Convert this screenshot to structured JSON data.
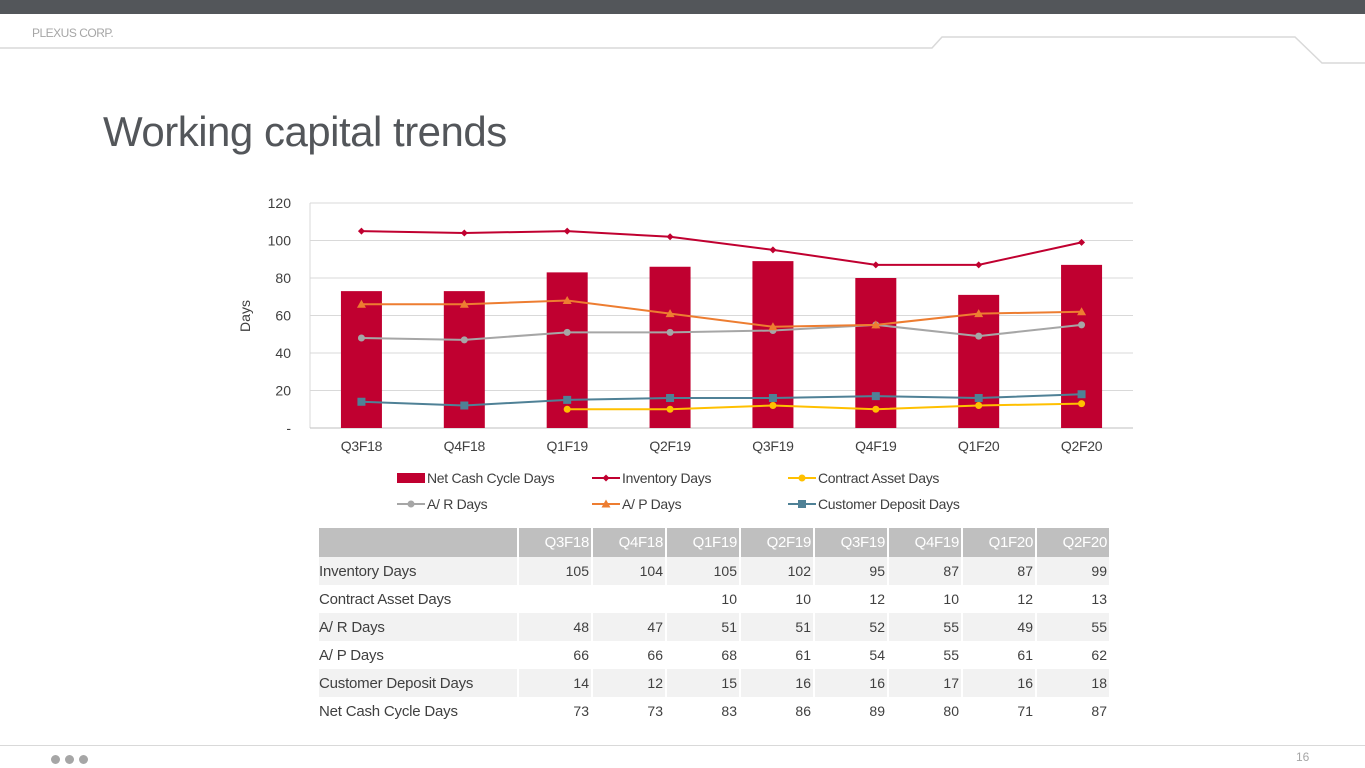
{
  "header": {
    "company": "PLEXUS CORP."
  },
  "slide": {
    "title": "Working capital trends",
    "page_number": "16"
  },
  "chart_data": {
    "type": "bar+line",
    "ylabel": "Days",
    "ylim": [
      0,
      120
    ],
    "yticks": [
      120,
      100,
      80,
      60,
      40,
      20,
      0
    ],
    "ytick_labels": [
      "120",
      "100",
      "80",
      "60",
      "40",
      "20",
      "-"
    ],
    "grid": true,
    "legend_position": "bottom",
    "categories": [
      "Q3F18",
      "Q4F18",
      "Q1F19",
      "Q2F19",
      "Q3F19",
      "Q4F19",
      "Q1F20",
      "Q2F20"
    ],
    "series": [
      {
        "name": "Net Cash Cycle Days",
        "type": "bar",
        "color": "#c00030",
        "values": [
          73,
          73,
          83,
          86,
          89,
          80,
          71,
          87
        ]
      },
      {
        "name": "Inventory Days",
        "type": "line",
        "marker": "diamond",
        "color": "#c00030",
        "values": [
          105,
          104,
          105,
          102,
          95,
          87,
          87,
          99
        ]
      },
      {
        "name": "Contract Asset Days",
        "type": "line",
        "marker": "circle",
        "color": "#ffc000",
        "values": [
          null,
          null,
          10,
          10,
          12,
          10,
          12,
          13
        ]
      },
      {
        "name": "A/ R Days",
        "type": "line",
        "marker": "circle",
        "color": "#a6a6a6",
        "values": [
          48,
          47,
          51,
          51,
          52,
          55,
          49,
          55
        ]
      },
      {
        "name": "A/ P Days",
        "type": "line",
        "marker": "triangle",
        "color": "#ed7d31",
        "values": [
          66,
          66,
          68,
          61,
          54,
          55,
          61,
          62
        ]
      },
      {
        "name": "Customer Deposit Days",
        "type": "line",
        "marker": "square",
        "color": "#4f8196",
        "values": [
          14,
          12,
          15,
          16,
          16,
          17,
          16,
          18
        ]
      }
    ]
  },
  "table": {
    "columns": [
      "Q3F18",
      "Q4F18",
      "Q1F19",
      "Q2F19",
      "Q3F19",
      "Q4F19",
      "Q1F20",
      "Q2F20"
    ],
    "rows": [
      {
        "label": "Inventory Days",
        "values": [
          "105",
          "104",
          "105",
          "102",
          "95",
          "87",
          "87",
          "99"
        ]
      },
      {
        "label": "Contract Asset Days",
        "values": [
          "",
          "",
          "10",
          "10",
          "12",
          "10",
          "12",
          "13"
        ]
      },
      {
        "label": "A/ R Days",
        "values": [
          "48",
          "47",
          "51",
          "51",
          "52",
          "55",
          "49",
          "55"
        ]
      },
      {
        "label": "A/ P Days",
        "values": [
          "66",
          "66",
          "68",
          "61",
          "54",
          "55",
          "61",
          "62"
        ]
      },
      {
        "label": "Customer Deposit Days",
        "values": [
          "14",
          "12",
          "15",
          "16",
          "16",
          "17",
          "16",
          "18"
        ]
      },
      {
        "label": "Net Cash Cycle Days",
        "values": [
          "73",
          "73",
          "83",
          "86",
          "89",
          "80",
          "71",
          "87"
        ]
      }
    ]
  }
}
